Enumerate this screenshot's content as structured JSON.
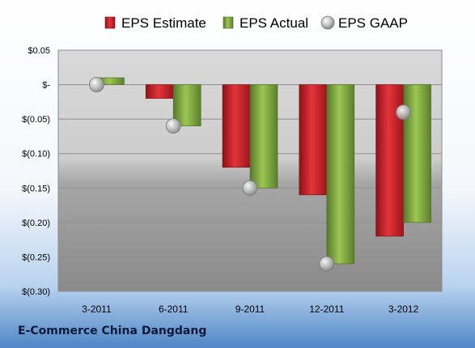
{
  "company": "E-Commerce China Dangdang",
  "chart_data": {
    "type": "bar",
    "categories": [
      "3-2011",
      "6-2011",
      "9-2011",
      "12-2011",
      "3-2012"
    ],
    "series": [
      {
        "name": "EPS Estimate",
        "color": "#c0272d",
        "values": [
          null,
          -0.02,
          -0.12,
          -0.16,
          -0.22
        ]
      },
      {
        "name": "EPS Actual",
        "color": "#7aa33a",
        "values": [
          0.01,
          -0.06,
          -0.15,
          -0.26,
          -0.2
        ]
      }
    ],
    "points": {
      "name": "EPS GAAP",
      "color": "#b8b8b8",
      "values": [
        0.0,
        -0.06,
        -0.15,
        -0.26,
        -0.04
      ]
    },
    "ylim": [
      -0.3,
      0.05
    ],
    "yticks": [
      0.05,
      0,
      -0.05,
      -0.1,
      -0.15,
      -0.2,
      -0.25,
      -0.3
    ],
    "ytick_labels": [
      "$0.05",
      "$-",
      "$(0.05)",
      "$(0.10)",
      "$(0.15)",
      "$(0.20)",
      "$(0.25)",
      "$(0.30)"
    ],
    "legend_position": "top",
    "grid": true
  }
}
